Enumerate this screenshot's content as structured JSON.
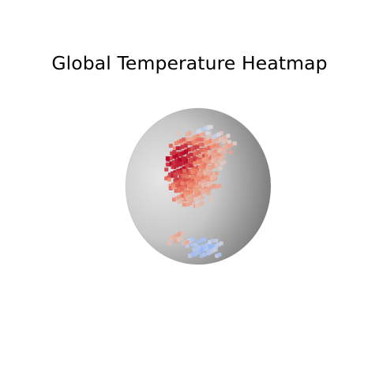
{
  "chart_data": {
    "type": "heatmap",
    "title": "Global Temperature Heatmap",
    "projection": "orthographic globe",
    "colormap": "coolwarm",
    "hot_color": "#b40426",
    "warm_color": "#f08a6c",
    "neutral_color": "#dddddd",
    "cool_color": "#9ab8f5",
    "cells": [
      [
        18,
        70,
        0.25
      ],
      [
        18,
        80,
        0.35
      ],
      [
        18,
        90,
        0.3
      ],
      [
        18,
        100,
        0.25
      ],
      [
        18,
        110,
        0.2
      ],
      [
        18,
        120,
        0.15
      ],
      [
        22,
        65,
        0.55
      ],
      [
        22,
        75,
        0.65
      ],
      [
        22,
        85,
        0.6
      ],
      [
        22,
        95,
        0.5
      ],
      [
        22,
        105,
        0.4
      ],
      [
        22,
        115,
        0.3
      ],
      [
        22,
        125,
        0.2
      ],
      [
        26,
        60,
        0.75
      ],
      [
        26,
        70,
        0.85
      ],
      [
        26,
        80,
        0.8
      ],
      [
        26,
        90,
        0.7
      ],
      [
        26,
        100,
        0.55
      ],
      [
        26,
        110,
        0.4
      ],
      [
        26,
        120,
        0.25
      ],
      [
        30,
        58,
        0.9
      ],
      [
        30,
        66,
        0.95
      ],
      [
        30,
        74,
        0.9
      ],
      [
        30,
        82,
        0.8
      ],
      [
        30,
        90,
        0.65
      ],
      [
        30,
        98,
        0.5
      ],
      [
        30,
        106,
        0.35
      ],
      [
        30,
        114,
        0.25
      ],
      [
        34,
        56,
        0.95
      ],
      [
        34,
        64,
        1.0
      ],
      [
        34,
        72,
        0.9
      ],
      [
        34,
        80,
        0.75
      ],
      [
        34,
        88,
        0.6
      ],
      [
        34,
        96,
        0.45
      ],
      [
        34,
        104,
        0.3
      ],
      [
        34,
        112,
        0.2
      ],
      [
        38,
        56,
        0.85
      ],
      [
        38,
        64,
        0.9
      ],
      [
        38,
        72,
        0.8
      ],
      [
        38,
        80,
        0.65
      ],
      [
        38,
        88,
        0.55
      ],
      [
        38,
        96,
        0.4
      ],
      [
        38,
        104,
        0.3
      ],
      [
        42,
        56,
        0.75
      ],
      [
        42,
        64,
        0.8
      ],
      [
        42,
        72,
        0.7
      ],
      [
        42,
        80,
        0.6
      ],
      [
        42,
        88,
        0.5
      ],
      [
        42,
        96,
        0.4
      ],
      [
        42,
        104,
        0.3
      ],
      [
        46,
        58,
        0.6
      ],
      [
        46,
        66,
        0.7
      ],
      [
        46,
        74,
        0.6
      ],
      [
        46,
        82,
        0.55
      ],
      [
        46,
        90,
        0.45
      ],
      [
        46,
        98,
        0.35
      ],
      [
        46,
        106,
        0.25
      ],
      [
        50,
        60,
        0.55
      ],
      [
        50,
        68,
        0.6
      ],
      [
        50,
        76,
        0.55
      ],
      [
        50,
        84,
        0.5
      ],
      [
        50,
        92,
        0.4
      ],
      [
        50,
        100,
        0.3
      ],
      [
        54,
        64,
        0.45
      ],
      [
        54,
        72,
        0.5
      ],
      [
        54,
        80,
        0.45
      ],
      [
        54,
        88,
        0.35
      ],
      [
        54,
        96,
        0.25
      ],
      [
        58,
        70,
        0.3
      ],
      [
        58,
        78,
        0.35
      ],
      [
        58,
        86,
        0.25
      ],
      [
        86,
        78,
        -0.2
      ],
      [
        86,
        86,
        -0.35
      ],
      [
        86,
        94,
        -0.4
      ],
      [
        86,
        102,
        -0.3
      ],
      [
        86,
        110,
        -0.2
      ],
      [
        90,
        82,
        -0.3
      ],
      [
        90,
        90,
        -0.45
      ],
      [
        90,
        98,
        -0.4
      ],
      [
        90,
        106,
        -0.25
      ],
      [
        82,
        60,
        0.3
      ],
      [
        82,
        68,
        0.25
      ],
      [
        14,
        95,
        -0.15
      ],
      [
        14,
        105,
        -0.1
      ]
    ]
  }
}
